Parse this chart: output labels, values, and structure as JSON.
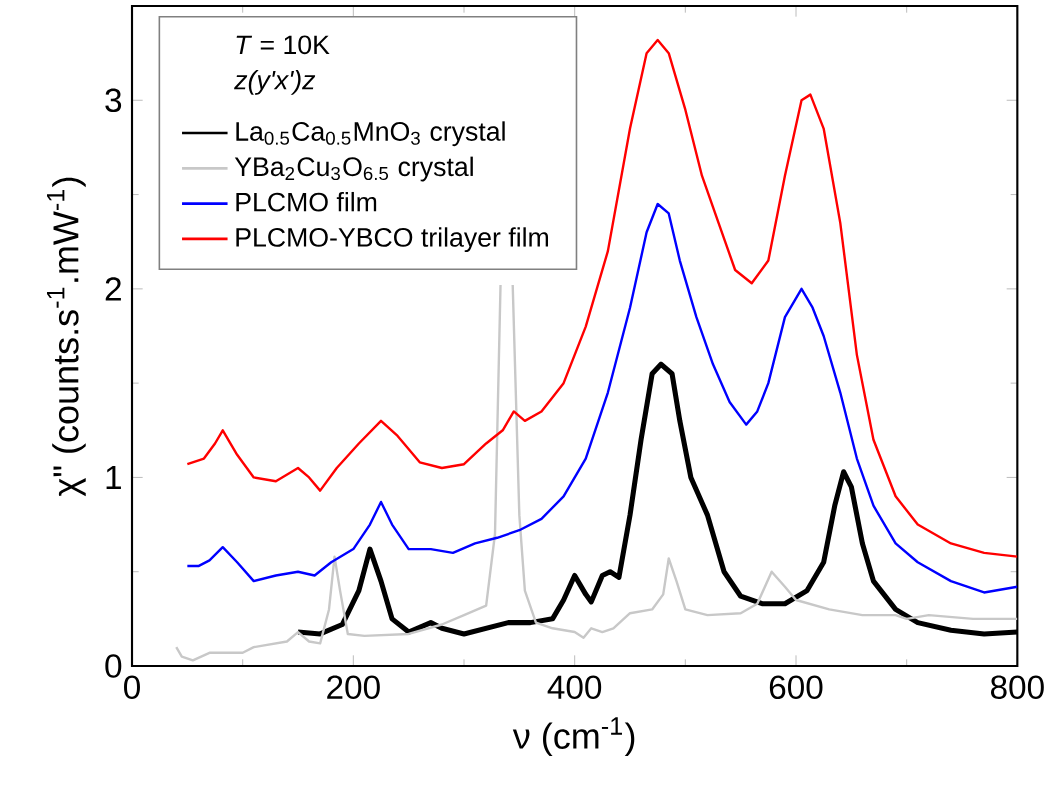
{
  "chart_data": {
    "type": "line",
    "xlabel": "ν (cm$^{-1}$)",
    "ylabel": "χ\" (counts.s$^{-1}$.mW$^{-1}$)",
    "legend_title": "*T* = 10K",
    "annotations": [
      "z(y'x')z"
    ],
    "xlim": [
      0,
      800
    ],
    "ylim": [
      0,
      3.5
    ],
    "xticks": [
      0,
      200,
      400,
      600,
      800
    ],
    "yticks": [
      0,
      1,
      2,
      3
    ],
    "legend": "top left",
    "grid": false,
    "marker": "none",
    "line_style": "solid",
    "series": [
      {
        "name": "La$_{0.5}$Ca$_{0.5}$MnO$_{3}$ crystal",
        "color": "#000000",
        "x": [
          150,
          170,
          190,
          205,
          215,
          225,
          235,
          250,
          270,
          280,
          300,
          320,
          340,
          360,
          380,
          390,
          400,
          410,
          415,
          425,
          432,
          440,
          450,
          460,
          470,
          478,
          488,
          495,
          505,
          520,
          535,
          550,
          570,
          590,
          610,
          625,
          635,
          643,
          650,
          660,
          670,
          690,
          710,
          740,
          770,
          800
        ],
        "values": [
          0.18,
          0.17,
          0.22,
          0.4,
          0.62,
          0.45,
          0.25,
          0.18,
          0.23,
          0.2,
          0.17,
          0.2,
          0.23,
          0.23,
          0.25,
          0.35,
          0.48,
          0.38,
          0.34,
          0.48,
          0.5,
          0.47,
          0.8,
          1.2,
          1.55,
          1.6,
          1.55,
          1.3,
          1.0,
          0.8,
          0.5,
          0.37,
          0.33,
          0.33,
          0.4,
          0.55,
          0.85,
          1.03,
          0.95,
          0.65,
          0.45,
          0.3,
          0.23,
          0.19,
          0.17,
          0.18
        ]
      },
      {
        "name": "YBa$_{2}$Cu$_{3}$O$_{6.5}$ crystal",
        "color": "#c8c8c8",
        "x": [
          40,
          45,
          55,
          70,
          100,
          110,
          140,
          150,
          160,
          170,
          178,
          183,
          188,
          195,
          210,
          250,
          280,
          300,
          320,
          328,
          333,
          338,
          344,
          350,
          355,
          365,
          380,
          400,
          408,
          415,
          425,
          435,
          450,
          470,
          480,
          485,
          492,
          500,
          520,
          550,
          565,
          578,
          590,
          600,
          630,
          660,
          690,
          700,
          720,
          760,
          800
        ],
        "values": [
          0.1,
          0.05,
          0.03,
          0.07,
          0.07,
          0.1,
          0.13,
          0.18,
          0.13,
          0.12,
          0.3,
          0.58,
          0.4,
          0.17,
          0.16,
          0.17,
          0.22,
          0.27,
          0.32,
          0.7,
          2.02,
          null,
          2.02,
          0.8,
          0.4,
          0.23,
          0.2,
          0.18,
          0.15,
          0.2,
          0.18,
          0.2,
          0.28,
          0.3,
          0.38,
          0.57,
          0.45,
          0.3,
          0.27,
          0.28,
          0.33,
          0.5,
          0.42,
          0.35,
          0.3,
          0.27,
          0.27,
          0.25,
          0.27,
          0.25,
          0.25
        ]
      },
      {
        "name": "PLCMO film",
        "color": "#0000ff",
        "x": [
          50,
          60,
          70,
          82,
          95,
          110,
          130,
          150,
          165,
          180,
          200,
          215,
          225,
          235,
          250,
          270,
          290,
          310,
          330,
          350,
          370,
          390,
          410,
          430,
          450,
          465,
          475,
          485,
          495,
          510,
          525,
          540,
          555,
          565,
          575,
          590,
          605,
          615,
          625,
          640,
          655,
          670,
          690,
          710,
          740,
          770,
          800
        ],
        "values": [
          0.53,
          0.53,
          0.56,
          0.63,
          0.55,
          0.45,
          0.48,
          0.5,
          0.48,
          0.55,
          0.62,
          0.75,
          0.87,
          0.75,
          0.62,
          0.62,
          0.6,
          0.65,
          0.68,
          0.72,
          0.78,
          0.9,
          1.1,
          1.45,
          1.9,
          2.3,
          2.45,
          2.4,
          2.15,
          1.85,
          1.6,
          1.4,
          1.28,
          1.35,
          1.5,
          1.85,
          2.0,
          1.9,
          1.75,
          1.45,
          1.1,
          0.85,
          0.65,
          0.55,
          0.45,
          0.39,
          0.42
        ]
      },
      {
        "name": "PLCMO-YBCO trilayer film",
        "color": "#ff0000",
        "x": [
          50,
          65,
          75,
          82,
          95,
          110,
          130,
          150,
          160,
          170,
          185,
          205,
          225,
          240,
          260,
          280,
          300,
          320,
          335,
          345,
          355,
          370,
          390,
          410,
          430,
          450,
          465,
          475,
          485,
          500,
          515,
          530,
          545,
          560,
          575,
          590,
          605,
          613,
          625,
          640,
          655,
          670,
          690,
          710,
          740,
          770,
          800
        ],
        "values": [
          1.07,
          1.1,
          1.18,
          1.25,
          1.12,
          1.0,
          0.98,
          1.05,
          1.0,
          0.93,
          1.05,
          1.18,
          1.3,
          1.22,
          1.08,
          1.05,
          1.07,
          1.18,
          1.25,
          1.35,
          1.3,
          1.35,
          1.5,
          1.8,
          2.2,
          2.85,
          3.25,
          3.32,
          3.25,
          2.95,
          2.6,
          2.35,
          2.1,
          2.03,
          2.15,
          2.6,
          3.0,
          3.03,
          2.85,
          2.35,
          1.65,
          1.2,
          0.9,
          0.75,
          0.65,
          0.6,
          0.58
        ]
      }
    ]
  }
}
